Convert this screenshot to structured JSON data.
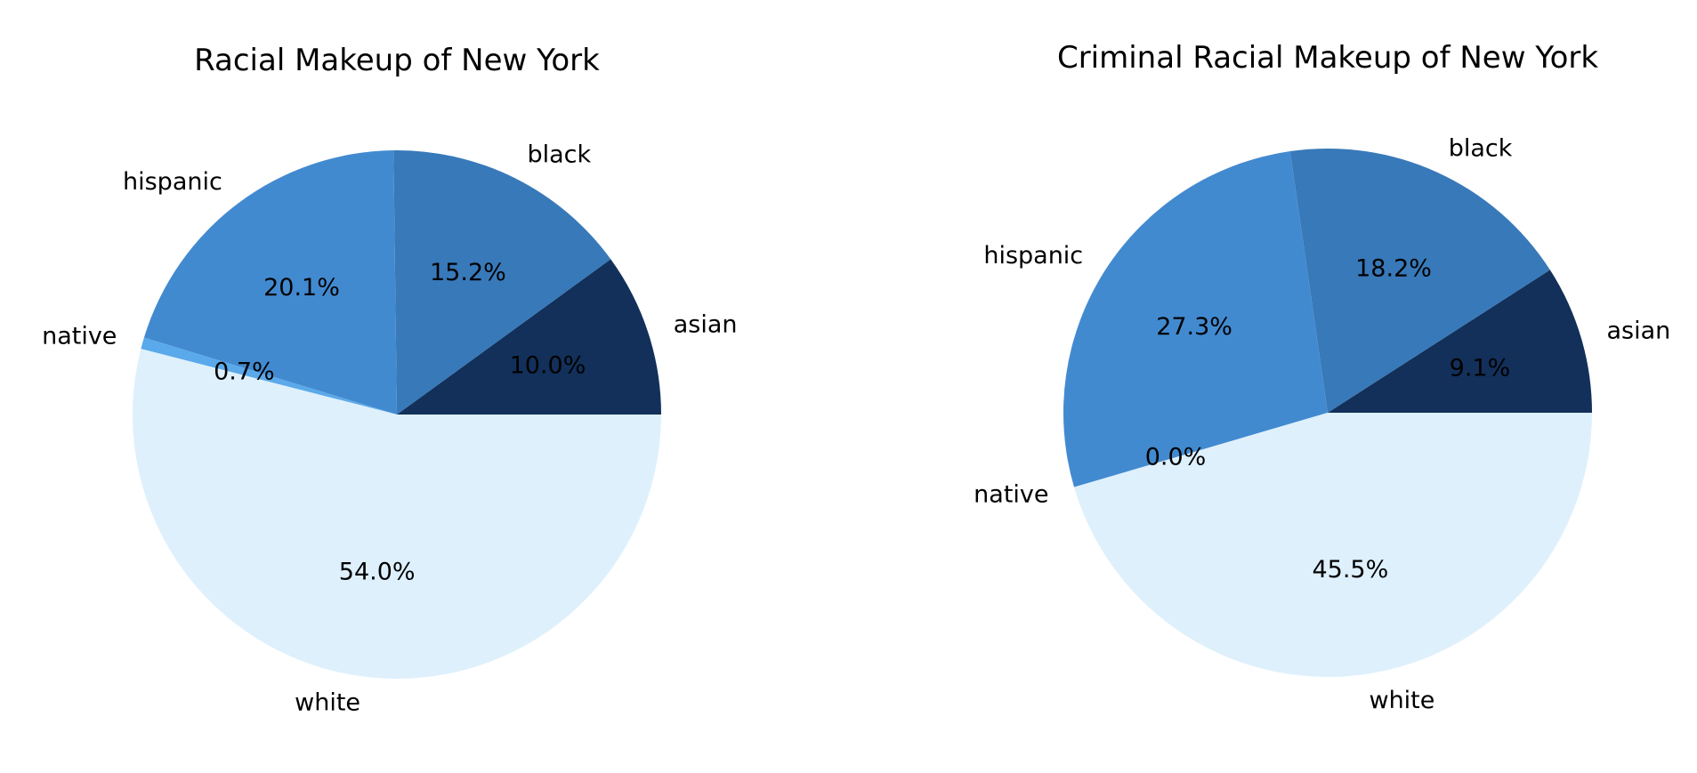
{
  "chart_data": [
    {
      "type": "pie",
      "title": "Racial Makeup of New York",
      "categories": [
        "asian",
        "black",
        "hispanic",
        "native",
        "white"
      ],
      "values": [
        10.0,
        15.2,
        20.1,
        0.7,
        54.0
      ],
      "percent_labels": [
        "10.0%",
        "15.2%",
        "20.1%",
        "0.7%",
        "54.0%"
      ],
      "colors": [
        "#12305a",
        "#3879b9",
        "#428ad0",
        "#5aa9ea",
        "#def0fc"
      ],
      "start_angle_deg": 0,
      "direction": "counterclockwise"
    },
    {
      "type": "pie",
      "title": "Criminal Racial Makeup of New York",
      "categories": [
        "asian",
        "black",
        "hispanic",
        "native",
        "white"
      ],
      "values": [
        9.1,
        18.2,
        27.3,
        0.0,
        45.5
      ],
      "percent_labels": [
        "9.1%",
        "18.2%",
        "27.3%",
        "0.0%",
        "45.5%"
      ],
      "colors": [
        "#12305a",
        "#3879b9",
        "#428ad0",
        "#5aa9ea",
        "#def0fc"
      ],
      "start_angle_deg": 0,
      "direction": "counterclockwise"
    }
  ]
}
